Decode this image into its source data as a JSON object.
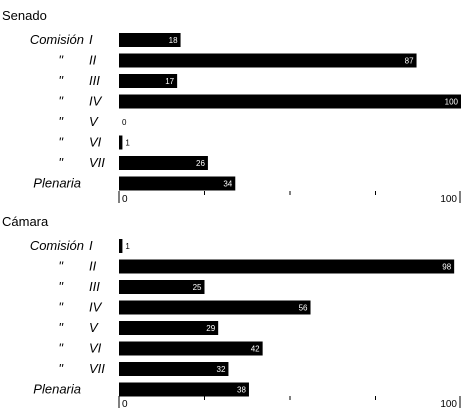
{
  "chart_data": {
    "type": "bar",
    "orientation": "horizontal",
    "xlim": [
      0,
      100
    ],
    "tick_values": [
      0,
      25,
      50,
      75,
      100
    ],
    "tick_labels": [
      "0",
      "",
      "",
      "",
      "100"
    ],
    "bar_color": "#000000",
    "groups": [
      {
        "title": "Senado",
        "categories": [
          {
            "prefix": "Comisión",
            "label": "I",
            "value": 18
          },
          {
            "prefix": "\"",
            "label": "II",
            "value": 87
          },
          {
            "prefix": "\"",
            "label": "III",
            "value": 17
          },
          {
            "prefix": "\"",
            "label": "IV",
            "value": 100
          },
          {
            "prefix": "\"",
            "label": "V",
            "value": 0
          },
          {
            "prefix": "\"",
            "label": "VI",
            "value": 1
          },
          {
            "prefix": "\"",
            "label": "VII",
            "value": 26
          },
          {
            "prefix": "",
            "label": "Plenaria",
            "value": 34
          }
        ]
      },
      {
        "title": "Cámara",
        "categories": [
          {
            "prefix": "Comisión",
            "label": "I",
            "value": 1
          },
          {
            "prefix": "\"",
            "label": "II",
            "value": 98
          },
          {
            "prefix": "\"",
            "label": "III",
            "value": 25
          },
          {
            "prefix": "\"",
            "label": "IV",
            "value": 56
          },
          {
            "prefix": "\"",
            "label": "V",
            "value": 29
          },
          {
            "prefix": "\"",
            "label": "VI",
            "value": 42
          },
          {
            "prefix": "\"",
            "label": "VII",
            "value": 32
          },
          {
            "prefix": "",
            "label": "Plenaria",
            "value": 38
          }
        ]
      }
    ]
  }
}
